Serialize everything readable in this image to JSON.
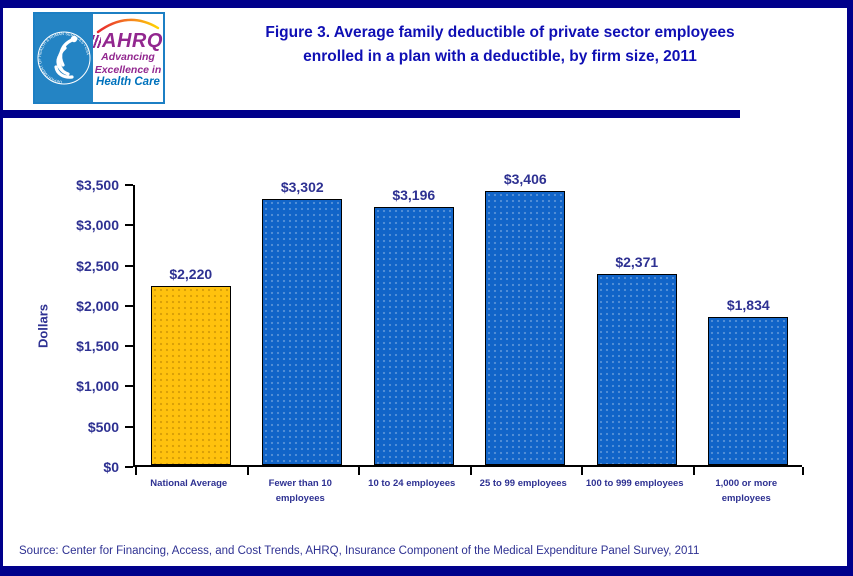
{
  "header": {
    "title_line1": "Figure 3. Average family deductible of private sector employees",
    "title_line2": "enrolled in a plan with a deductible, by firm size, 2011",
    "logo": {
      "seal_text": "DEPARTMENT OF HEALTH & HUMAN SERVICES • USA",
      "org_abbrev": "AHRQ",
      "taglines": [
        "Advancing",
        "Excellence in",
        "Health Care"
      ]
    }
  },
  "chart_data": {
    "type": "bar",
    "title": "Figure 3. Average family deductible of private sector employees enrolled in a plan with a deductible, by firm size, 2011",
    "categories": [
      "National Average",
      "Fewer than 10 employees",
      "10 to 24 employees",
      "25 to 99 employees",
      "100 to 999 employees",
      "1,000 or more employees"
    ],
    "values": [
      2220,
      3302,
      3196,
      3406,
      2371,
      1834
    ],
    "value_labels": [
      "$2,220",
      "$3,302",
      "$3,196",
      "$3,406",
      "$2,371",
      "$1,834"
    ],
    "xlabel": "",
    "ylabel": "Dollars",
    "ylim": [
      0,
      3500
    ],
    "ytick_step": 500,
    "ytick_labels": [
      "$0",
      "$500",
      "$1,000",
      "$1,500",
      "$2,000",
      "$2,500",
      "$3,000",
      "$3,500"
    ],
    "highlight_index": 0,
    "grid": false,
    "legend": "none",
    "bar_colors": {
      "highlight_bar": "#FFC20E",
      "default_bar": "#1164C8"
    }
  },
  "footer": {
    "source": "Source: Center for Financing, Access, and Cost Trends, AHRQ, Insurance Component of the Medical Expenditure Panel Survey, 2011"
  },
  "colors": {
    "frame_navy": "#00008B",
    "title_blue": "#0F0FB4",
    "label_indigo": "#2E3192",
    "bar_blue": "#1164C8",
    "bar_gold": "#FFC20E",
    "hhs_blue": "#2484C4",
    "ahrq_purple": "#92278F",
    "healthcare_blue": "#0072BC"
  }
}
